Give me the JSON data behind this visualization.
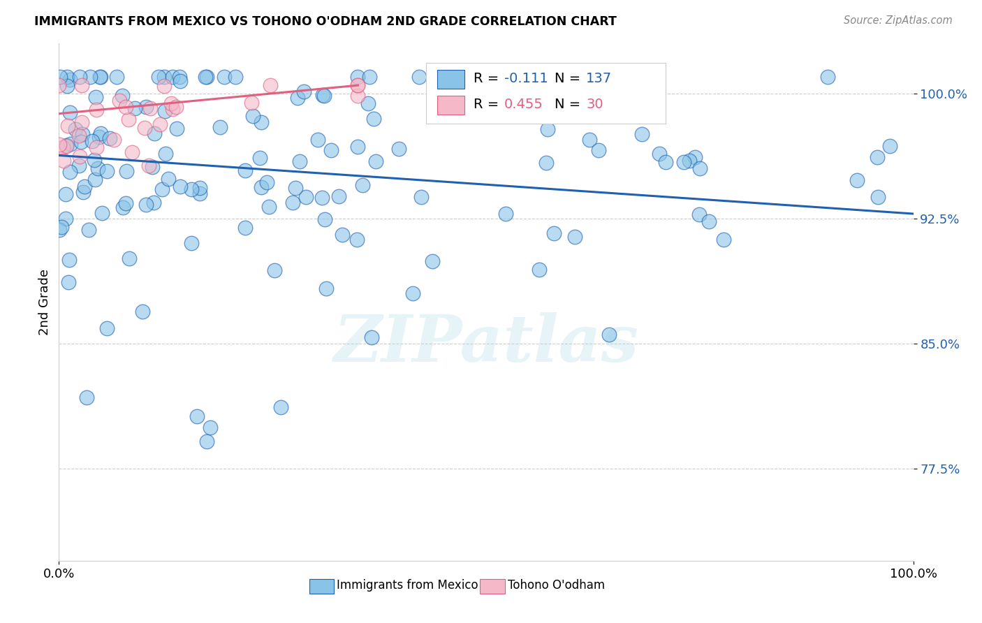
{
  "title": "IMMIGRANTS FROM MEXICO VS TOHONO O'ODHAM 2ND GRADE CORRELATION CHART",
  "source": "Source: ZipAtlas.com",
  "ylabel": "2nd Grade",
  "xlim": [
    0.0,
    1.0
  ],
  "ylim": [
    0.72,
    1.03
  ],
  "yticks": [
    0.775,
    0.85,
    0.925,
    1.0
  ],
  "ytick_labels": [
    "77.5%",
    "85.0%",
    "92.5%",
    "100.0%"
  ],
  "xtick_labels": [
    "0.0%",
    "100.0%"
  ],
  "blue_color": "#89c4e8",
  "pink_color": "#f4b8c8",
  "blue_line_color": "#2060b0",
  "pink_line_color": "#e06080",
  "R_blue": -0.111,
  "N_blue": 137,
  "R_pink": 0.455,
  "N_pink": 30,
  "watermark": "ZIPatlas",
  "blue_trendline_start_y": 0.963,
  "blue_trendline_end_y": 0.928,
  "pink_trendline_start_y": 0.988,
  "pink_trendline_end_y": 1.005
}
